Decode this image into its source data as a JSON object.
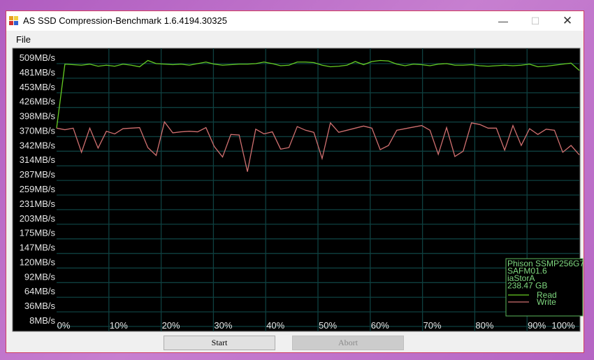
{
  "window": {
    "title": "AS SSD Compression-Benchmark 1.6.4194.30325",
    "minimize_icon": "minimize-icon",
    "maximize_icon": "maximize-icon",
    "close_icon": "close-icon"
  },
  "menu": {
    "file": "File"
  },
  "buttons": {
    "start": "Start",
    "abort": "Abort",
    "abort_enabled": false
  },
  "legend": {
    "device": "Phison SSMP256G7",
    "firmware": "SAFM01.6",
    "driver": "iaStorA",
    "capacity": "238.47 GB",
    "read": "Read",
    "write": "Write"
  },
  "colors": {
    "read": "#66cc22",
    "write": "#d07070",
    "grid": "#0e4040",
    "background": "#000000",
    "legend_border": "#5cb85c",
    "text": "#e6e6e6"
  },
  "chart_data": {
    "type": "line",
    "yticks": [
      "509MB/s",
      "481MB/s",
      "453MB/s",
      "426MB/s",
      "398MB/s",
      "370MB/s",
      "342MB/s",
      "314MB/s",
      "287MB/s",
      "259MB/s",
      "231MB/s",
      "203MB/s",
      "175MB/s",
      "147MB/s",
      "120MB/s",
      "92MB/s",
      "64MB/s",
      "36MB/s",
      "8MB/s"
    ],
    "xticks": [
      "0%",
      "10%",
      "20%",
      "30%",
      "40%",
      "50%",
      "60%",
      "70%",
      "80%",
      "90%",
      "100%"
    ],
    "ylim": [
      8,
      509
    ],
    "xlim": [
      0,
      100
    ],
    "grid": true,
    "legend_placement": "bottom-right",
    "series": [
      {
        "name": "Read",
        "values": [
          386,
          508,
          507,
          506,
          508,
          504,
          506,
          504,
          508,
          506,
          503,
          515,
          509,
          508,
          507,
          508,
          506,
          509,
          512,
          508,
          506,
          507,
          508,
          508,
          509,
          512,
          509,
          505,
          506,
          512,
          512,
          511,
          506,
          503,
          504,
          506,
          513,
          507,
          513,
          515,
          514,
          508,
          505,
          508,
          507,
          505,
          508,
          509,
          506,
          506,
          507,
          505,
          504,
          505,
          506,
          505,
          506,
          508,
          503,
          504,
          506,
          508,
          510,
          496
        ]
      },
      {
        "name": "Write",
        "values": [
          386,
          383,
          386,
          340,
          386,
          348,
          380,
          375,
          385,
          386,
          387,
          349,
          334,
          398,
          377,
          379,
          380,
          379,
          387,
          351,
          331,
          374,
          373,
          303,
          384,
          375,
          379,
          346,
          349,
          389,
          382,
          378,
          328,
          396,
          378,
          382,
          386,
          390,
          386,
          345,
          353,
          382,
          385,
          388,
          391,
          382,
          336,
          387,
          332,
          342,
          396,
          393,
          386,
          386,
          344,
          391,
          353,
          385,
          374,
          384,
          382,
          340,
          353,
          335
        ]
      }
    ]
  }
}
